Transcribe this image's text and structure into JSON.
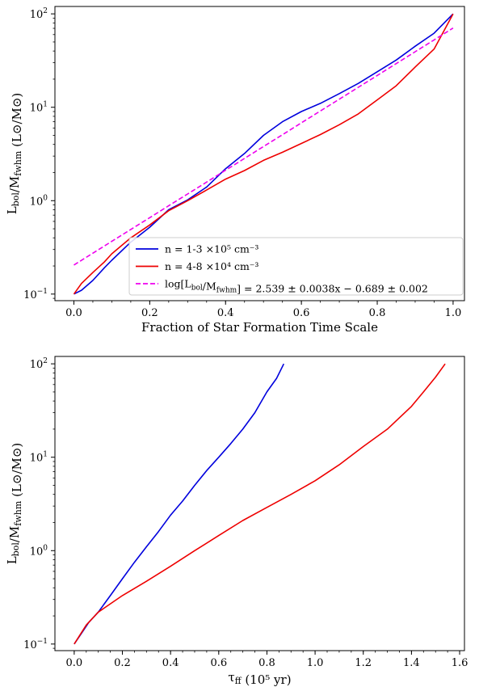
{
  "chart_data": [
    {
      "type": "line",
      "xlabel": "Fraction of Star Formation Time Scale",
      "ylabel": "L_bol/M_fwhm (L⊙/M⊙)",
      "xlim": [
        -0.05,
        1.03
      ],
      "ylim": [
        0.085,
        120
      ],
      "yscale": "log",
      "xticks": [
        0.0,
        0.2,
        0.4,
        0.6,
        0.8,
        1.0
      ],
      "xtick_labels": [
        "0.0",
        "0.2",
        "0.4",
        "0.6",
        "0.8",
        "1.0"
      ],
      "yticks": [
        0.1,
        1,
        10,
        100
      ],
      "ytick_labels": [
        "10",
        "10",
        "10",
        "10"
      ],
      "ytick_exponents": [
        "−1",
        "0",
        "1",
        "2"
      ],
      "legend_position": "lower-right",
      "series": [
        {
          "name": "n = 1-3 ×10⁵ cm⁻³",
          "color": "#0000dd",
          "style": "solid",
          "x": [
            0.0,
            0.02,
            0.05,
            0.08,
            0.1,
            0.15,
            0.2,
            0.25,
            0.3,
            0.35,
            0.4,
            0.45,
            0.5,
            0.55,
            0.6,
            0.65,
            0.7,
            0.75,
            0.8,
            0.85,
            0.9,
            0.95,
            1.0
          ],
          "y": [
            0.1,
            0.11,
            0.14,
            0.19,
            0.23,
            0.36,
            0.52,
            0.8,
            1.02,
            1.4,
            2.2,
            3.2,
            5.0,
            7.0,
            9.0,
            11.0,
            14.0,
            18.0,
            24.0,
            32.0,
            45.0,
            62.0,
            100.0
          ]
        },
        {
          "name": "n = 4-8 ×10⁴ cm⁻³",
          "color": "#ee0000",
          "style": "solid",
          "x": [
            0.0,
            0.02,
            0.05,
            0.08,
            0.1,
            0.15,
            0.2,
            0.25,
            0.3,
            0.35,
            0.4,
            0.45,
            0.5,
            0.55,
            0.6,
            0.65,
            0.7,
            0.75,
            0.8,
            0.85,
            0.9,
            0.95,
            1.0
          ],
          "y": [
            0.1,
            0.13,
            0.17,
            0.22,
            0.27,
            0.4,
            0.55,
            0.78,
            1.0,
            1.3,
            1.7,
            2.1,
            2.7,
            3.3,
            4.1,
            5.1,
            6.5,
            8.5,
            12.0,
            17.0,
            27.0,
            42.0,
            100.0
          ]
        },
        {
          "name": "log[L_bol/M_fwhm] = 2.539 ± 0.0038x − 0.689 ± 0.002",
          "color": "#ee00ee",
          "style": "dashed",
          "x": [
            0.0,
            1.0
          ],
          "y": [
            0.2046,
            70.47
          ]
        }
      ],
      "legend": [
        {
          "label": "n  = 1-3 ×10⁵ cm⁻³",
          "color": "#0000dd",
          "style": "solid"
        },
        {
          "label": "n = 4-8 ×10⁴ cm⁻³",
          "color": "#ee0000",
          "style": "solid"
        },
        {
          "label": "log[L_bol/M_fwhm] = 2.539 ± 0.0038x − 0.689 ± 0.002",
          "color": "#ee00ee",
          "style": "dashed"
        }
      ]
    },
    {
      "type": "line",
      "xlabel": "τ_ff (10⁵ yr)",
      "ylabel": "L_bol/M_fwhm (L⊙/M⊙)",
      "xlim": [
        -0.08,
        1.62
      ],
      "ylim": [
        0.085,
        120
      ],
      "yscale": "log",
      "xticks": [
        0.0,
        0.2,
        0.4,
        0.6,
        0.8,
        1.0,
        1.2,
        1.4,
        1.6
      ],
      "xtick_labels": [
        "0.0",
        "0.2",
        "0.4",
        "0.6",
        "0.8",
        "1.0",
        "1.2",
        "1.4",
        "1.6"
      ],
      "yticks": [
        0.1,
        1,
        10,
        100
      ],
      "ytick_labels": [
        "10",
        "10",
        "10",
        "10"
      ],
      "ytick_exponents": [
        "−1",
        "0",
        "1",
        "2"
      ],
      "series": [
        {
          "color": "#0000dd",
          "style": "solid",
          "x": [
            0.0,
            0.03,
            0.06,
            0.1,
            0.15,
            0.2,
            0.25,
            0.3,
            0.35,
            0.4,
            0.45,
            0.5,
            0.55,
            0.6,
            0.65,
            0.7,
            0.75,
            0.8,
            0.84,
            0.87
          ],
          "y": [
            0.1,
            0.13,
            0.17,
            0.22,
            0.33,
            0.5,
            0.75,
            1.1,
            1.6,
            2.4,
            3.4,
            5.0,
            7.2,
            10.0,
            14.0,
            20.0,
            30.0,
            50.0,
            70.0,
            100.0
          ]
        },
        {
          "color": "#ee0000",
          "style": "solid",
          "x": [
            0.0,
            0.05,
            0.1,
            0.2,
            0.3,
            0.4,
            0.5,
            0.6,
            0.7,
            0.8,
            0.9,
            1.0,
            1.1,
            1.2,
            1.3,
            1.4,
            1.45,
            1.5,
            1.54
          ],
          "y": [
            0.1,
            0.16,
            0.22,
            0.33,
            0.47,
            0.68,
            1.0,
            1.45,
            2.1,
            2.9,
            4.0,
            5.6,
            8.3,
            13.0,
            20.0,
            35.0,
            50.0,
            72.0,
            100.0
          ]
        }
      ]
    }
  ]
}
